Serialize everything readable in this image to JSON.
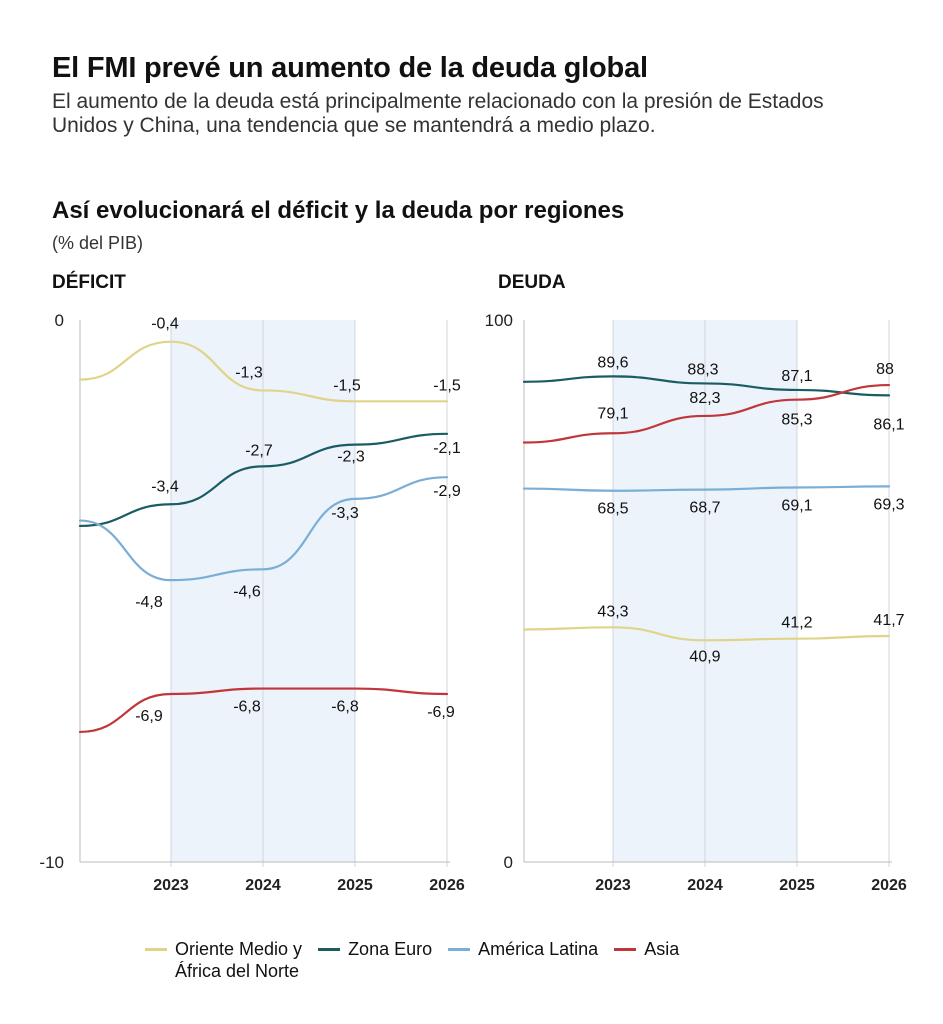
{
  "header": {
    "title": "El FMI prevé un aumento de la deuda global",
    "subtitle": "El aumento de la deuda está principalmente relacionado con la presión de Estados Unidos y China, una tendencia que se mantendrá a medio plazo.",
    "section_title": "Así evolucionará el déficit y la deuda por regiones",
    "unit": "(% del PIB)"
  },
  "legend": [
    {
      "label_line1": "Oriente Medio y",
      "label_line2": "África del Norte",
      "color": "#e0d48a"
    },
    {
      "label_line1": "Zona Euro",
      "label_line2": "",
      "color": "#1b5c62"
    },
    {
      "label_line1": "América Latina",
      "label_line2": "",
      "color": "#7aaed6"
    },
    {
      "label_line1": "Asia",
      "label_line2": "",
      "color": "#c1363a"
    }
  ],
  "chart_data": [
    {
      "type": "line",
      "title": "DÉFICIT",
      "x": [
        "2023",
        "2024",
        "2025",
        "2026"
      ],
      "ylim": [
        -10,
        0
      ],
      "y_ticks": [
        "0",
        "-10"
      ],
      "shaded_x": [
        "2023",
        "2025"
      ],
      "grid": true,
      "series": [
        {
          "name": "Oriente Medio y África del Norte",
          "color": "#e0d48a",
          "values": [
            -0.4,
            -1.3,
            -1.5,
            -1.5
          ],
          "labels": [
            "-0,4",
            "-1,3",
            "-1,5",
            "-1,5"
          ]
        },
        {
          "name": "Zona Euro",
          "color": "#1b5c62",
          "values": [
            -3.4,
            -2.7,
            -2.3,
            -2.1
          ],
          "labels": [
            "-3,4",
            "-2,7",
            "-2,3",
            "-2,1"
          ]
        },
        {
          "name": "América Latina",
          "color": "#7aaed6",
          "values": [
            -4.8,
            -4.6,
            -3.3,
            -2.9
          ],
          "labels": [
            "-4,8",
            "-4,6",
            "-3,3",
            "-2,9"
          ]
        },
        {
          "name": "Asia",
          "color": "#c1363a",
          "values": [
            -6.9,
            -6.8,
            -6.8,
            -6.9
          ],
          "labels": [
            "-6,9",
            "-6,8",
            "-6,8",
            "-6,9"
          ]
        }
      ]
    },
    {
      "type": "line",
      "title": "DEUDA",
      "x": [
        "2023",
        "2024",
        "2025",
        "2026"
      ],
      "ylim": [
        0,
        100
      ],
      "y_ticks": [
        "100",
        "0"
      ],
      "shaded_x": [
        "2023",
        "2025"
      ],
      "grid": true,
      "series": [
        {
          "name": "Oriente Medio y África del Norte",
          "color": "#e0d48a",
          "values": [
            43.3,
            40.9,
            41.2,
            41.7
          ],
          "labels": [
            "43,3",
            "40,9",
            "41,2",
            "41,7"
          ]
        },
        {
          "name": "Zona Euro",
          "color": "#1b5c62",
          "values": [
            89.6,
            88.3,
            87.1,
            86.1
          ],
          "labels": [
            "89,6",
            "88,3",
            "87,1",
            "86,1"
          ]
        },
        {
          "name": "América Latina",
          "color": "#7aaed6",
          "values": [
            68.5,
            68.7,
            69.1,
            69.3
          ],
          "labels": [
            "68,5",
            "68,7",
            "69,1",
            "69,3"
          ]
        },
        {
          "name": "Asia",
          "color": "#c1363a",
          "values": [
            79.1,
            82.3,
            85.3,
            88
          ],
          "labels": [
            "79,1",
            "82,3",
            "85,3",
            "88"
          ]
        }
      ]
    }
  ]
}
